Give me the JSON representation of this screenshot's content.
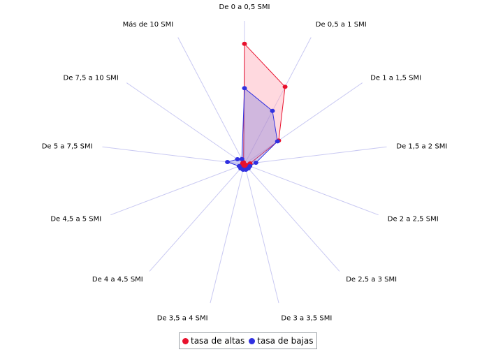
{
  "chart_data": {
    "type": "radar",
    "categories": [
      "De 0 a 0,5 SMI",
      "De 0,5 a 1 SMI",
      "De 1 a 1,5 SMI",
      "De 1,5 a 2 SMI",
      "De 2 a 2,5 SMI",
      "De 2,5 a 3 SMI",
      "De 3 a 3,5 SMI",
      "De 3,5 a 4 SMI",
      "De 4 a 4,5 SMI",
      "De 4,5 a 5 SMI",
      "De 5 a 7,5 SMI",
      "De 7,5 a 10 SMI",
      "Más de 10 SMI"
    ],
    "series": [
      {
        "name": "tasa de altas",
        "color": "#e8112d",
        "fill": "rgba(255,170,185,0.45)",
        "values": [
          0.84,
          0.61,
          0.29,
          0.04,
          0.015,
          0.015,
          0.015,
          0.015,
          0.015,
          0.02,
          0.015,
          0.015,
          0.015
        ]
      },
      {
        "name": "tasa de bajas",
        "color": "#3030e0",
        "fill": "rgba(120,120,220,0.35)",
        "values": [
          0.53,
          0.42,
          0.28,
          0.08,
          0.04,
          0.04,
          0.04,
          0.04,
          0.04,
          0.04,
          0.12,
          0.06,
          0.04
        ]
      }
    ],
    "rmax": 1.0,
    "grid": false,
    "legend": "bottom-center"
  }
}
